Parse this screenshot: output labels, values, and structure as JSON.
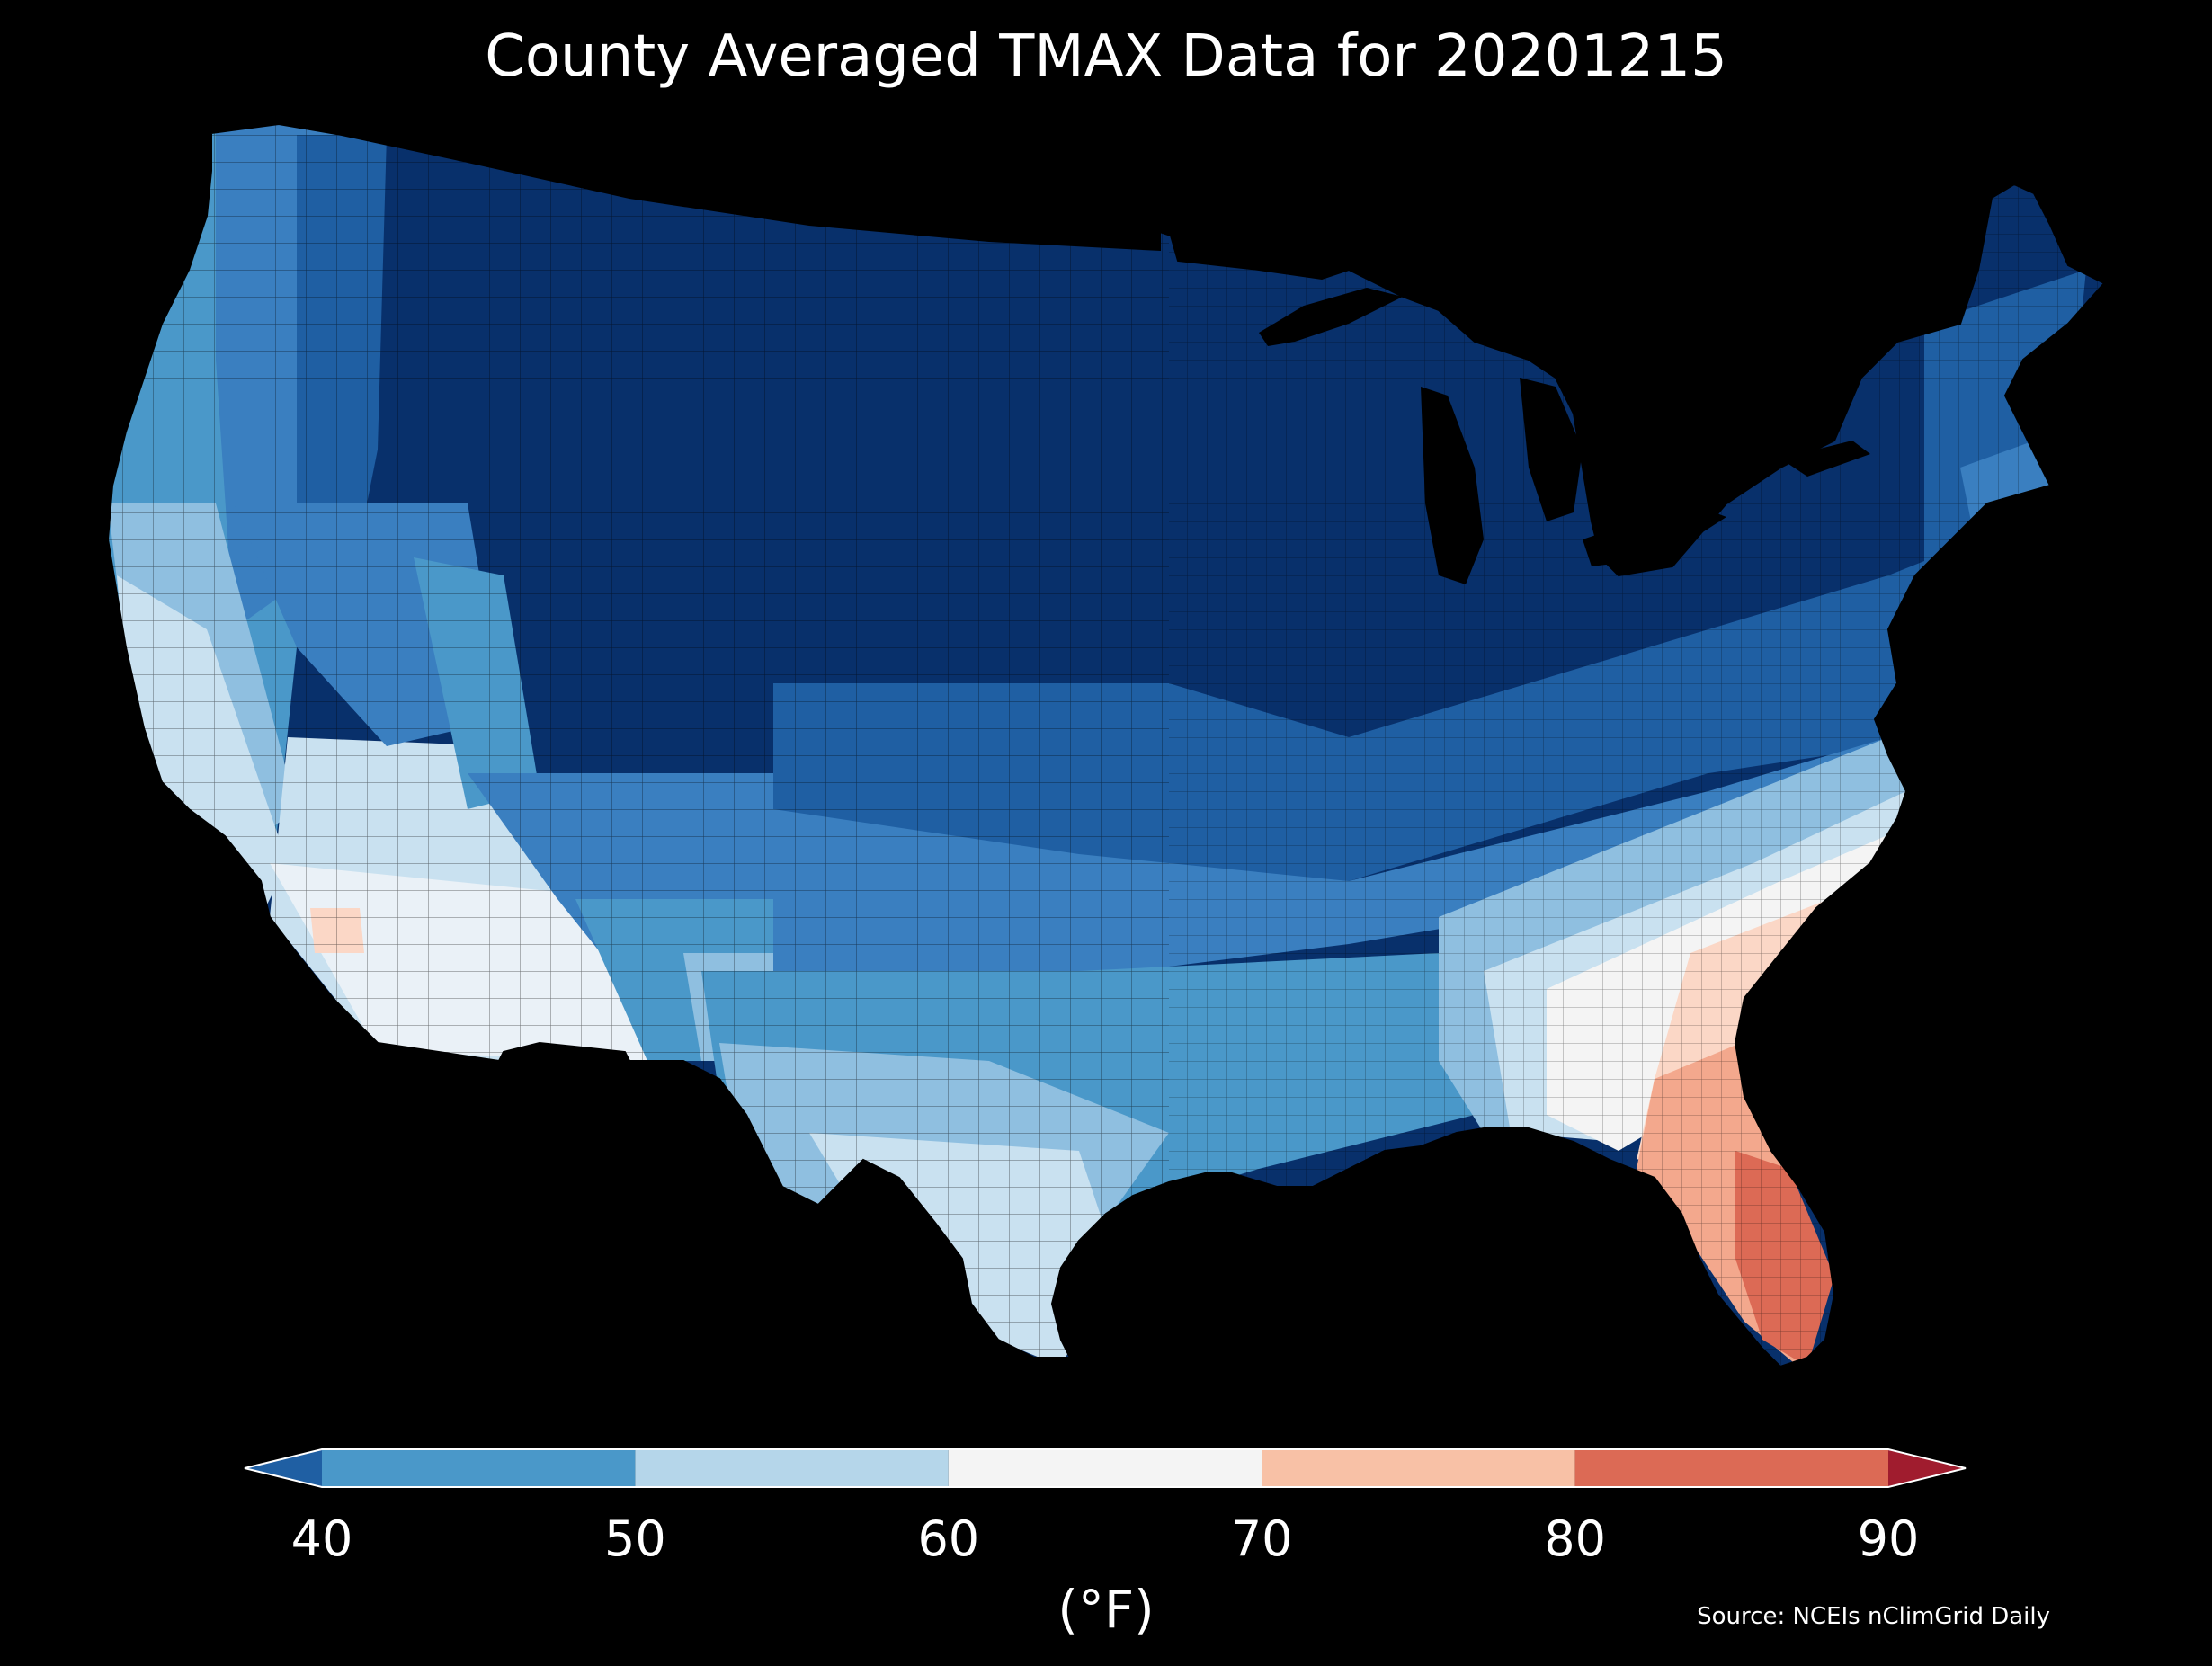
{
  "title": "County Averaged TMAX Data for 20201215",
  "colorbar": {
    "ticks": [
      "40",
      "50",
      "60",
      "70",
      "80",
      "90"
    ],
    "bins": [
      {
        "range": "<40",
        "color": "#1f5fa3"
      },
      {
        "range": "40-50",
        "color": "#4a98c9"
      },
      {
        "range": "50-60",
        "color": "#b5d6ea"
      },
      {
        "range": "60-70",
        "color": "#f4f4f4"
      },
      {
        "range": "70-80",
        "color": "#f8c1a6"
      },
      {
        "range": "80-90",
        "color": "#dc6a55"
      },
      {
        "range": ">90",
        "color": "#a01c2e"
      }
    ],
    "units": "(°F)"
  },
  "source": "Source: NCEIs nClimGrid Daily",
  "map": {
    "background": "#000000",
    "fill_colors": {
      "very_cold": "#08306b",
      "cold": "#12417e",
      "cool_dark": "#1f5fa3",
      "cool": "#3a7fc0",
      "mild_blue": "#4a98c9",
      "light_blue": "#8fbfe0",
      "pale_blue": "#c9e1f0",
      "near_white": "#eaf1f7",
      "white": "#f4f4f4",
      "pale_red": "#fbd7c6",
      "salmon": "#f3a88d",
      "red": "#dc6a55"
    }
  }
}
